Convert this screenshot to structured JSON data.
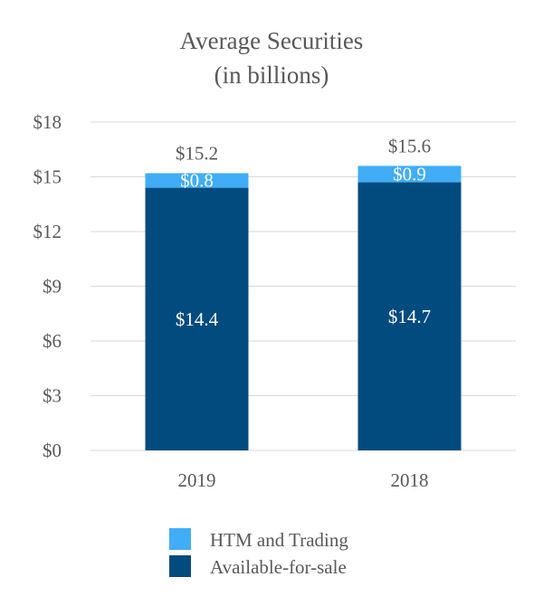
{
  "chart_data": {
    "type": "bar",
    "stacked": true,
    "title": [
      "Average Securities",
      "(in billions)"
    ],
    "xlabel": "",
    "ylabel": "",
    "categories": [
      "2019",
      "2018"
    ],
    "series": [
      {
        "name": "Available-for-sale",
        "color": "#024b7f",
        "values": [
          14.4,
          14.7
        ],
        "labels": [
          "$14.4",
          "$14.7"
        ]
      },
      {
        "name": "HTM and Trading",
        "color": "#41adf6",
        "values": [
          0.8,
          0.9
        ],
        "labels": [
          "$0.8",
          "$0.9"
        ]
      }
    ],
    "totals": [
      15.2,
      15.6
    ],
    "total_labels": [
      "$15.2",
      "$15.6"
    ],
    "ylim": [
      0,
      18
    ],
    "yticks": [
      0,
      3,
      6,
      9,
      12,
      15,
      18
    ],
    "ytick_labels": [
      "$0",
      "$3",
      "$6",
      "$9",
      "$12",
      "$15",
      "$18"
    ],
    "grid": true,
    "gridline_color": "#d9d9d9",
    "legend": {
      "position": "bottom",
      "order": [
        "HTM and Trading",
        "Available-for-sale"
      ]
    }
  }
}
